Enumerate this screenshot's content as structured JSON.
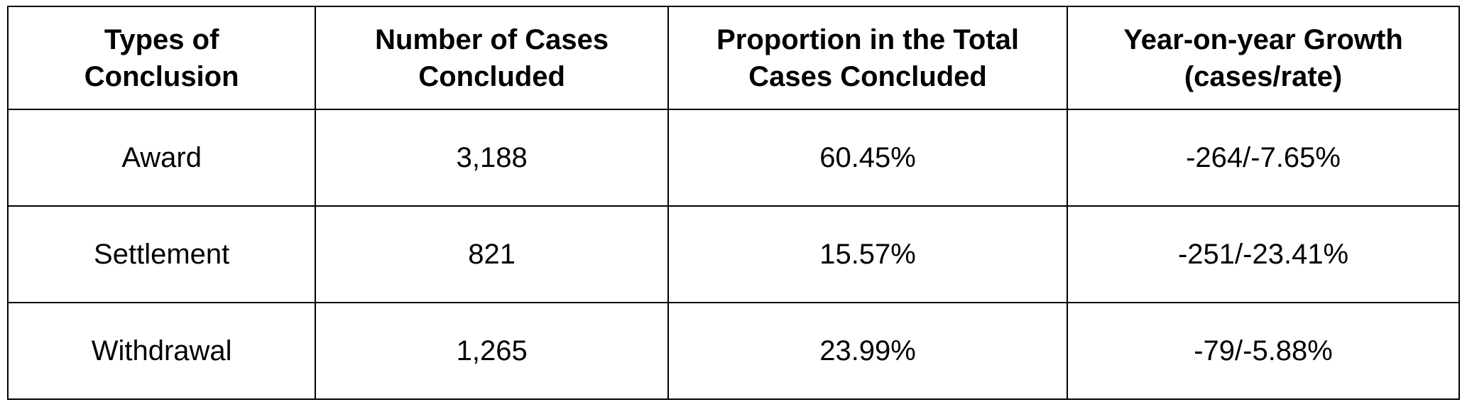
{
  "table": {
    "headers": [
      [
        "Types of",
        "Conclusion"
      ],
      [
        "Number of Cases",
        "Concluded"
      ],
      [
        "Proportion in the Total",
        "Cases Concluded"
      ],
      [
        "Year-on-year Growth",
        "(cases/rate)"
      ]
    ],
    "rows": [
      [
        "Award",
        "3,188",
        "60.45%",
        "-264/-7.65%"
      ],
      [
        "Settlement",
        "821",
        "15.57%",
        "-251/-23.41%"
      ],
      [
        "Withdrawal",
        "1,265",
        "23.99%",
        "-79/-5.88%"
      ]
    ]
  }
}
